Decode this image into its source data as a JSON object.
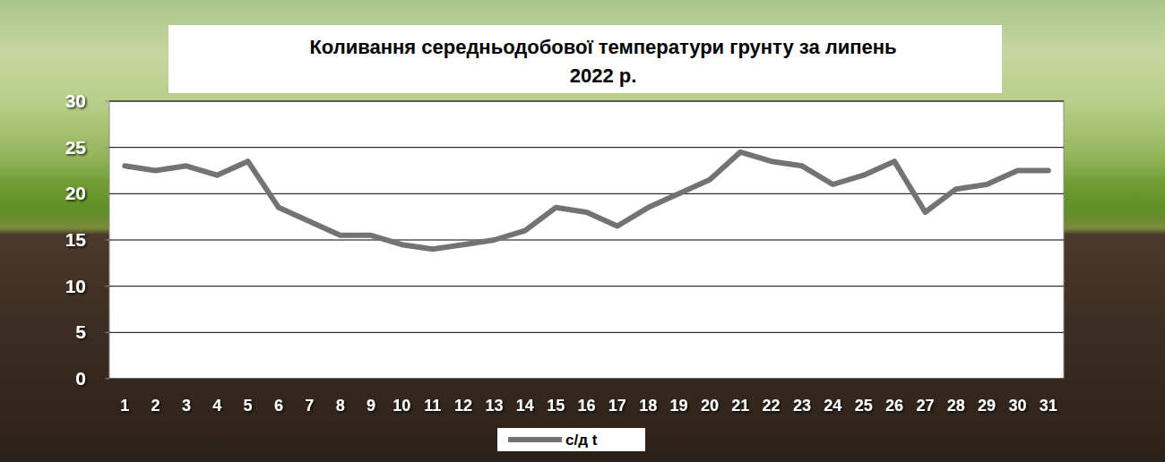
{
  "chart_data": {
    "type": "line",
    "title": "Коливання середньодобової температури грунту за липень 2022 р.",
    "categories": [
      "1",
      "2",
      "3",
      "4",
      "5",
      "6",
      "7",
      "8",
      "9",
      "10",
      "11",
      "12",
      "13",
      "14",
      "15",
      "16",
      "17",
      "18",
      "19",
      "20",
      "21",
      "22",
      "23",
      "24",
      "25",
      "26",
      "27",
      "28",
      "29",
      "30",
      "31"
    ],
    "series": [
      {
        "name": "с/д t",
        "color": "#737373",
        "values": [
          23,
          22.5,
          23,
          22,
          23.5,
          18.5,
          17,
          15.5,
          15.5,
          14.5,
          14,
          14.5,
          15,
          16,
          18.5,
          18,
          16.5,
          18.5,
          20,
          21.5,
          24.5,
          23.5,
          23,
          21,
          22,
          23.5,
          18,
          20.5,
          21,
          22.5,
          22.5
        ]
      }
    ],
    "ylim": [
      0,
      30
    ],
    "yticks": [
      0,
      5,
      10,
      15,
      20,
      25,
      30
    ],
    "grid": true,
    "legend": "bottom"
  }
}
